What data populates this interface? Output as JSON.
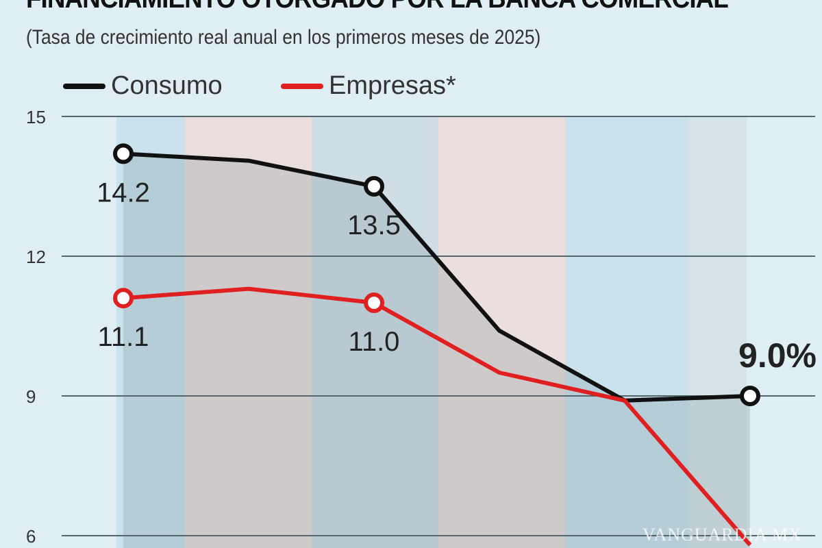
{
  "chart_data": {
    "type": "line",
    "title": "FINANCIAMIENTO OTORGADO POR LA BANCA COMERCIAL",
    "subtitle": "(Tasa de crecimiento real anual en los primeros meses de 2025)",
    "x": [
      1,
      2,
      3,
      4,
      5,
      6
    ],
    "ylim": [
      6,
      15
    ],
    "yticks": [
      "15",
      "12",
      "9",
      "6"
    ],
    "grid": true,
    "legend_position": "top-left",
    "series": [
      {
        "name": "Consumo",
        "color": "#111111",
        "values": [
          14.2,
          14.05,
          13.5,
          10.4,
          8.9,
          9.0
        ]
      },
      {
        "name": "Empresas*",
        "color": "#e02020",
        "values": [
          11.1,
          11.3,
          11.0,
          9.5,
          8.9,
          5.8
        ]
      }
    ],
    "data_labels": [
      {
        "series": 0,
        "index": 0,
        "text": "14.2"
      },
      {
        "series": 0,
        "index": 2,
        "text": "13.5"
      },
      {
        "series": 0,
        "index": 5,
        "text": "9.0%"
      },
      {
        "series": 1,
        "index": 0,
        "text": "11.1"
      },
      {
        "series": 1,
        "index": 2,
        "text": "11.0"
      }
    ]
  },
  "watermark": "VANGUARDIA MX"
}
